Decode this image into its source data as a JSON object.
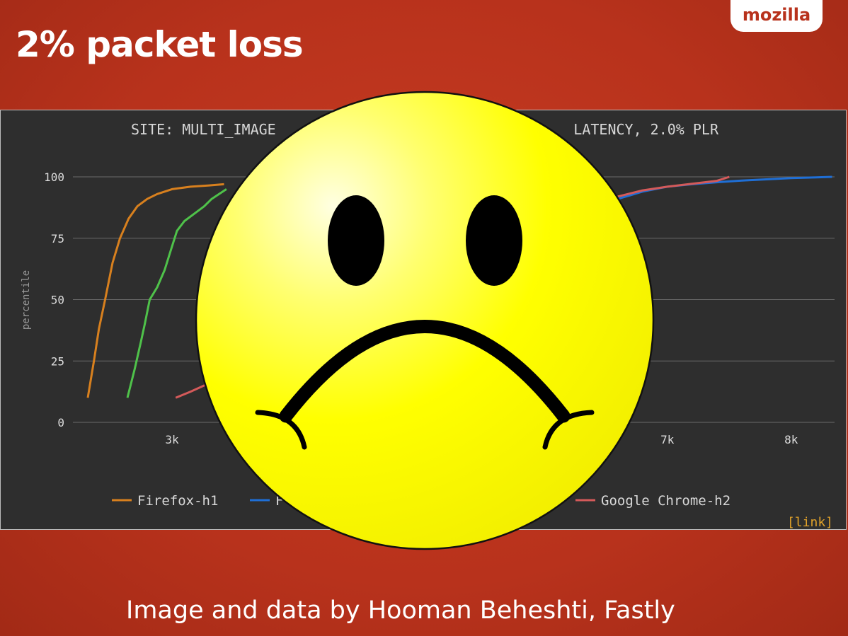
{
  "slide": {
    "title": "2% packet loss",
    "brand": "mozilla",
    "caption": "Image and data by Hooman Beheshti, Fastly"
  },
  "colors": {
    "background": "#b8321c",
    "panel": "#2e2e2e",
    "firefox_h1": "#d8801e",
    "firefox_h2": "#1f6fd6",
    "chrome_h1": "#4fc24a",
    "chrome_h2": "#d45a5a",
    "link": "#e0a12a",
    "smiley": "#ffff00"
  },
  "overlay": {
    "icon": "sad-face-icon"
  },
  "chart_data": {
    "type": "line",
    "title": "SITE: MULTI_IMAGE",
    "title_right": "LATENCY, 2.0% PLR",
    "ylabel": "percentile",
    "xlabel": "",
    "xlim": [
      2200,
      8350
    ],
    "ylim": [
      0,
      100
    ],
    "x_ticks": [
      {
        "value": 3000,
        "label": "3k"
      },
      {
        "value": 7000,
        "label": "7k"
      },
      {
        "value": 8000,
        "label": "8k"
      }
    ],
    "y_ticks": [
      {
        "value": 0,
        "label": "0"
      },
      {
        "value": 25,
        "label": "25"
      },
      {
        "value": 50,
        "label": "50"
      },
      {
        "value": 75,
        "label": "75"
      },
      {
        "value": 100,
        "label": "100"
      }
    ],
    "grid": true,
    "legend_position": "bottom",
    "link_text": "[link]",
    "series": [
      {
        "name": "Firefox-h1",
        "color_key": "firefox_h1",
        "in_legend": true,
        "points": [
          [
            2320,
            10
          ],
          [
            2370,
            25
          ],
          [
            2410,
            38
          ],
          [
            2460,
            50
          ],
          [
            2520,
            65
          ],
          [
            2580,
            75
          ],
          [
            2650,
            83
          ],
          [
            2720,
            88
          ],
          [
            2800,
            91
          ],
          [
            2880,
            93
          ],
          [
            3000,
            95
          ],
          [
            3150,
            96
          ],
          [
            3300,
            96.5
          ],
          [
            3420,
            97
          ]
        ]
      },
      {
        "name": "F",
        "color_key": "firefox_h2",
        "in_legend": true,
        "points": [
          [
            6600,
            91
          ],
          [
            6800,
            94
          ],
          [
            7000,
            96
          ],
          [
            7200,
            97
          ],
          [
            7400,
            97.8
          ],
          [
            7600,
            98.5
          ],
          [
            7800,
            99
          ],
          [
            8000,
            99.5
          ],
          [
            8200,
            99.8
          ],
          [
            8330,
            100
          ]
        ]
      },
      {
        "name": "",
        "color_key": "chrome_h1",
        "in_legend": false,
        "points": [
          [
            2640,
            10
          ],
          [
            2700,
            22
          ],
          [
            2750,
            33
          ],
          [
            2780,
            40
          ],
          [
            2820,
            50
          ],
          [
            2880,
            55
          ],
          [
            2940,
            62
          ],
          [
            2990,
            70
          ],
          [
            3040,
            78
          ],
          [
            3100,
            82
          ],
          [
            3180,
            85
          ],
          [
            3260,
            88
          ],
          [
            3320,
            91
          ],
          [
            3380,
            93
          ],
          [
            3440,
            95
          ]
        ]
      },
      {
        "name": "Google Chrome-h2",
        "color_key": "chrome_h2",
        "in_legend": true,
        "points": [
          [
            3030,
            10
          ],
          [
            3150,
            12.5
          ],
          [
            3260,
            15
          ],
          [
            3320,
            16
          ]
        ],
        "points_right": [
          [
            6600,
            92
          ],
          [
            6800,
            94.5
          ],
          [
            7000,
            96
          ],
          [
            7200,
            97.2
          ],
          [
            7400,
            98.4
          ],
          [
            7500,
            100
          ]
        ]
      }
    ]
  }
}
